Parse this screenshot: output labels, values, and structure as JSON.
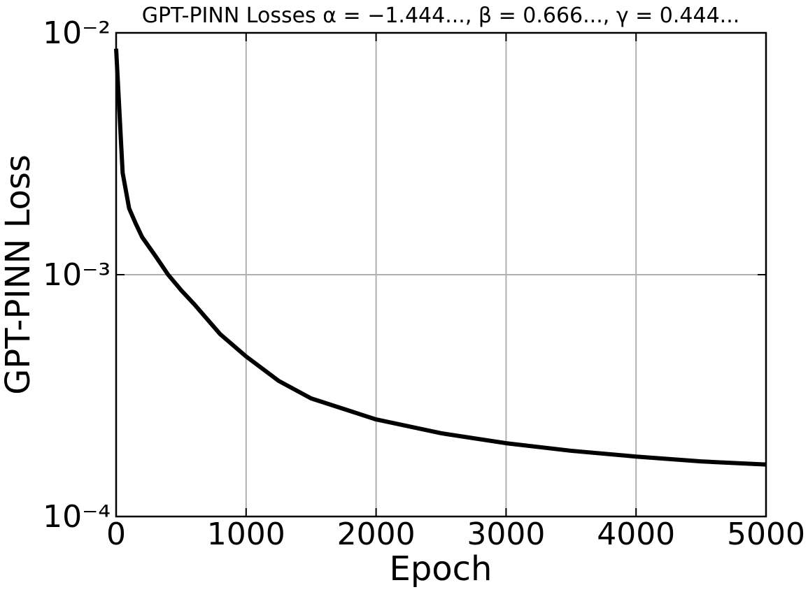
{
  "chart_data": {
    "type": "line",
    "title": "GPT-PINN Losses α = −1.444..., β = 0.666..., γ = 0.444...",
    "xlabel": "Epoch",
    "ylabel": "GPT-PINN Loss",
    "yscale": "log",
    "grid": true,
    "xlim": [
      0,
      5000
    ],
    "xticks": [
      0,
      1000,
      2000,
      3000,
      4000,
      5000
    ],
    "ylim": [
      0.0001,
      0.01
    ],
    "yticks": [
      {
        "value": 0.0001,
        "label": "10⁻⁴"
      },
      {
        "value": 0.001,
        "label": "10⁻³"
      },
      {
        "value": 0.01,
        "label": "10⁻²"
      }
    ],
    "series": [
      {
        "color": "#000000",
        "x": [
          0,
          50,
          100,
          150,
          200,
          300,
          400,
          500,
          600,
          800,
          1000,
          1250,
          1500,
          2000,
          2500,
          3000,
          3500,
          4000,
          4500,
          5000
        ],
        "values": [
          0.0086,
          0.00264,
          0.00188,
          0.00163,
          0.00143,
          0.0012,
          0.001,
          0.000863,
          0.000756,
          0.000568,
          0.000459,
          0.000364,
          0.000308,
          0.000252,
          0.000221,
          0.000201,
          0.000187,
          0.000177,
          0.000169,
          0.000164
        ]
      }
    ]
  }
}
